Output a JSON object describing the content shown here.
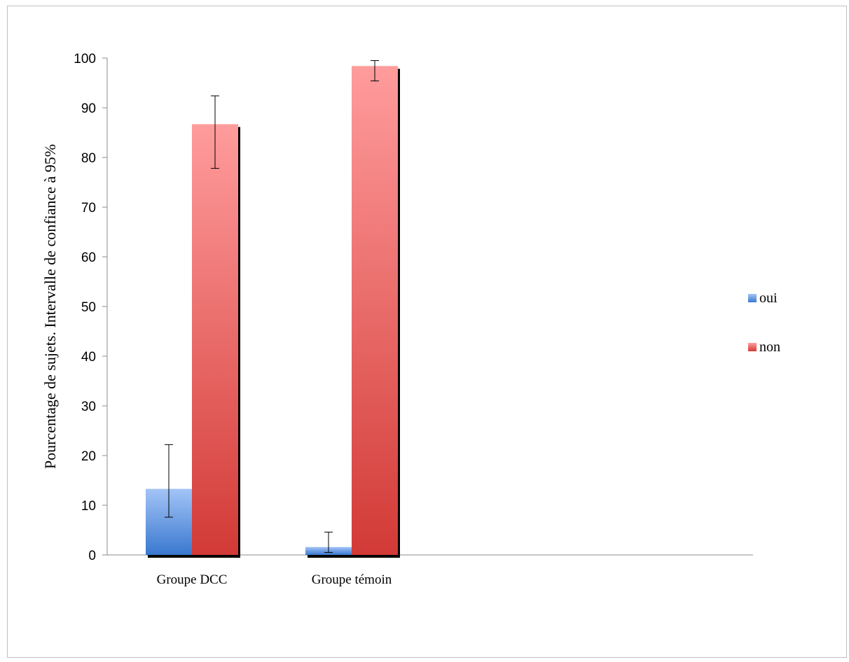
{
  "chart_data": {
    "type": "bar",
    "categories": [
      "Groupe DCC",
      "Groupe témoin"
    ],
    "series": [
      {
        "name": "oui",
        "values": [
          13.3,
          1.6
        ],
        "ci_low": [
          7.6,
          0.5
        ],
        "ci_high": [
          22.2,
          4.6
        ],
        "color_top": "#a3c4f7",
        "color_bottom": "#3a78cf"
      },
      {
        "name": "non",
        "values": [
          86.7,
          98.4
        ],
        "ci_low": [
          77.8,
          95.4
        ],
        "ci_high": [
          92.4,
          99.5
        ],
        "color_top": "#ff9c9c",
        "color_bottom": "#d23a36"
      }
    ],
    "ylabel": "Pourcentage de sujets. Intervalle de confiance à  95%",
    "xlabel": "",
    "ylim": [
      0,
      100
    ],
    "yticks": [
      "0",
      "10",
      "20",
      "30",
      "40",
      "50",
      "60",
      "70",
      "80",
      "90",
      "100"
    ],
    "legend_position": "right",
    "grid": false
  }
}
